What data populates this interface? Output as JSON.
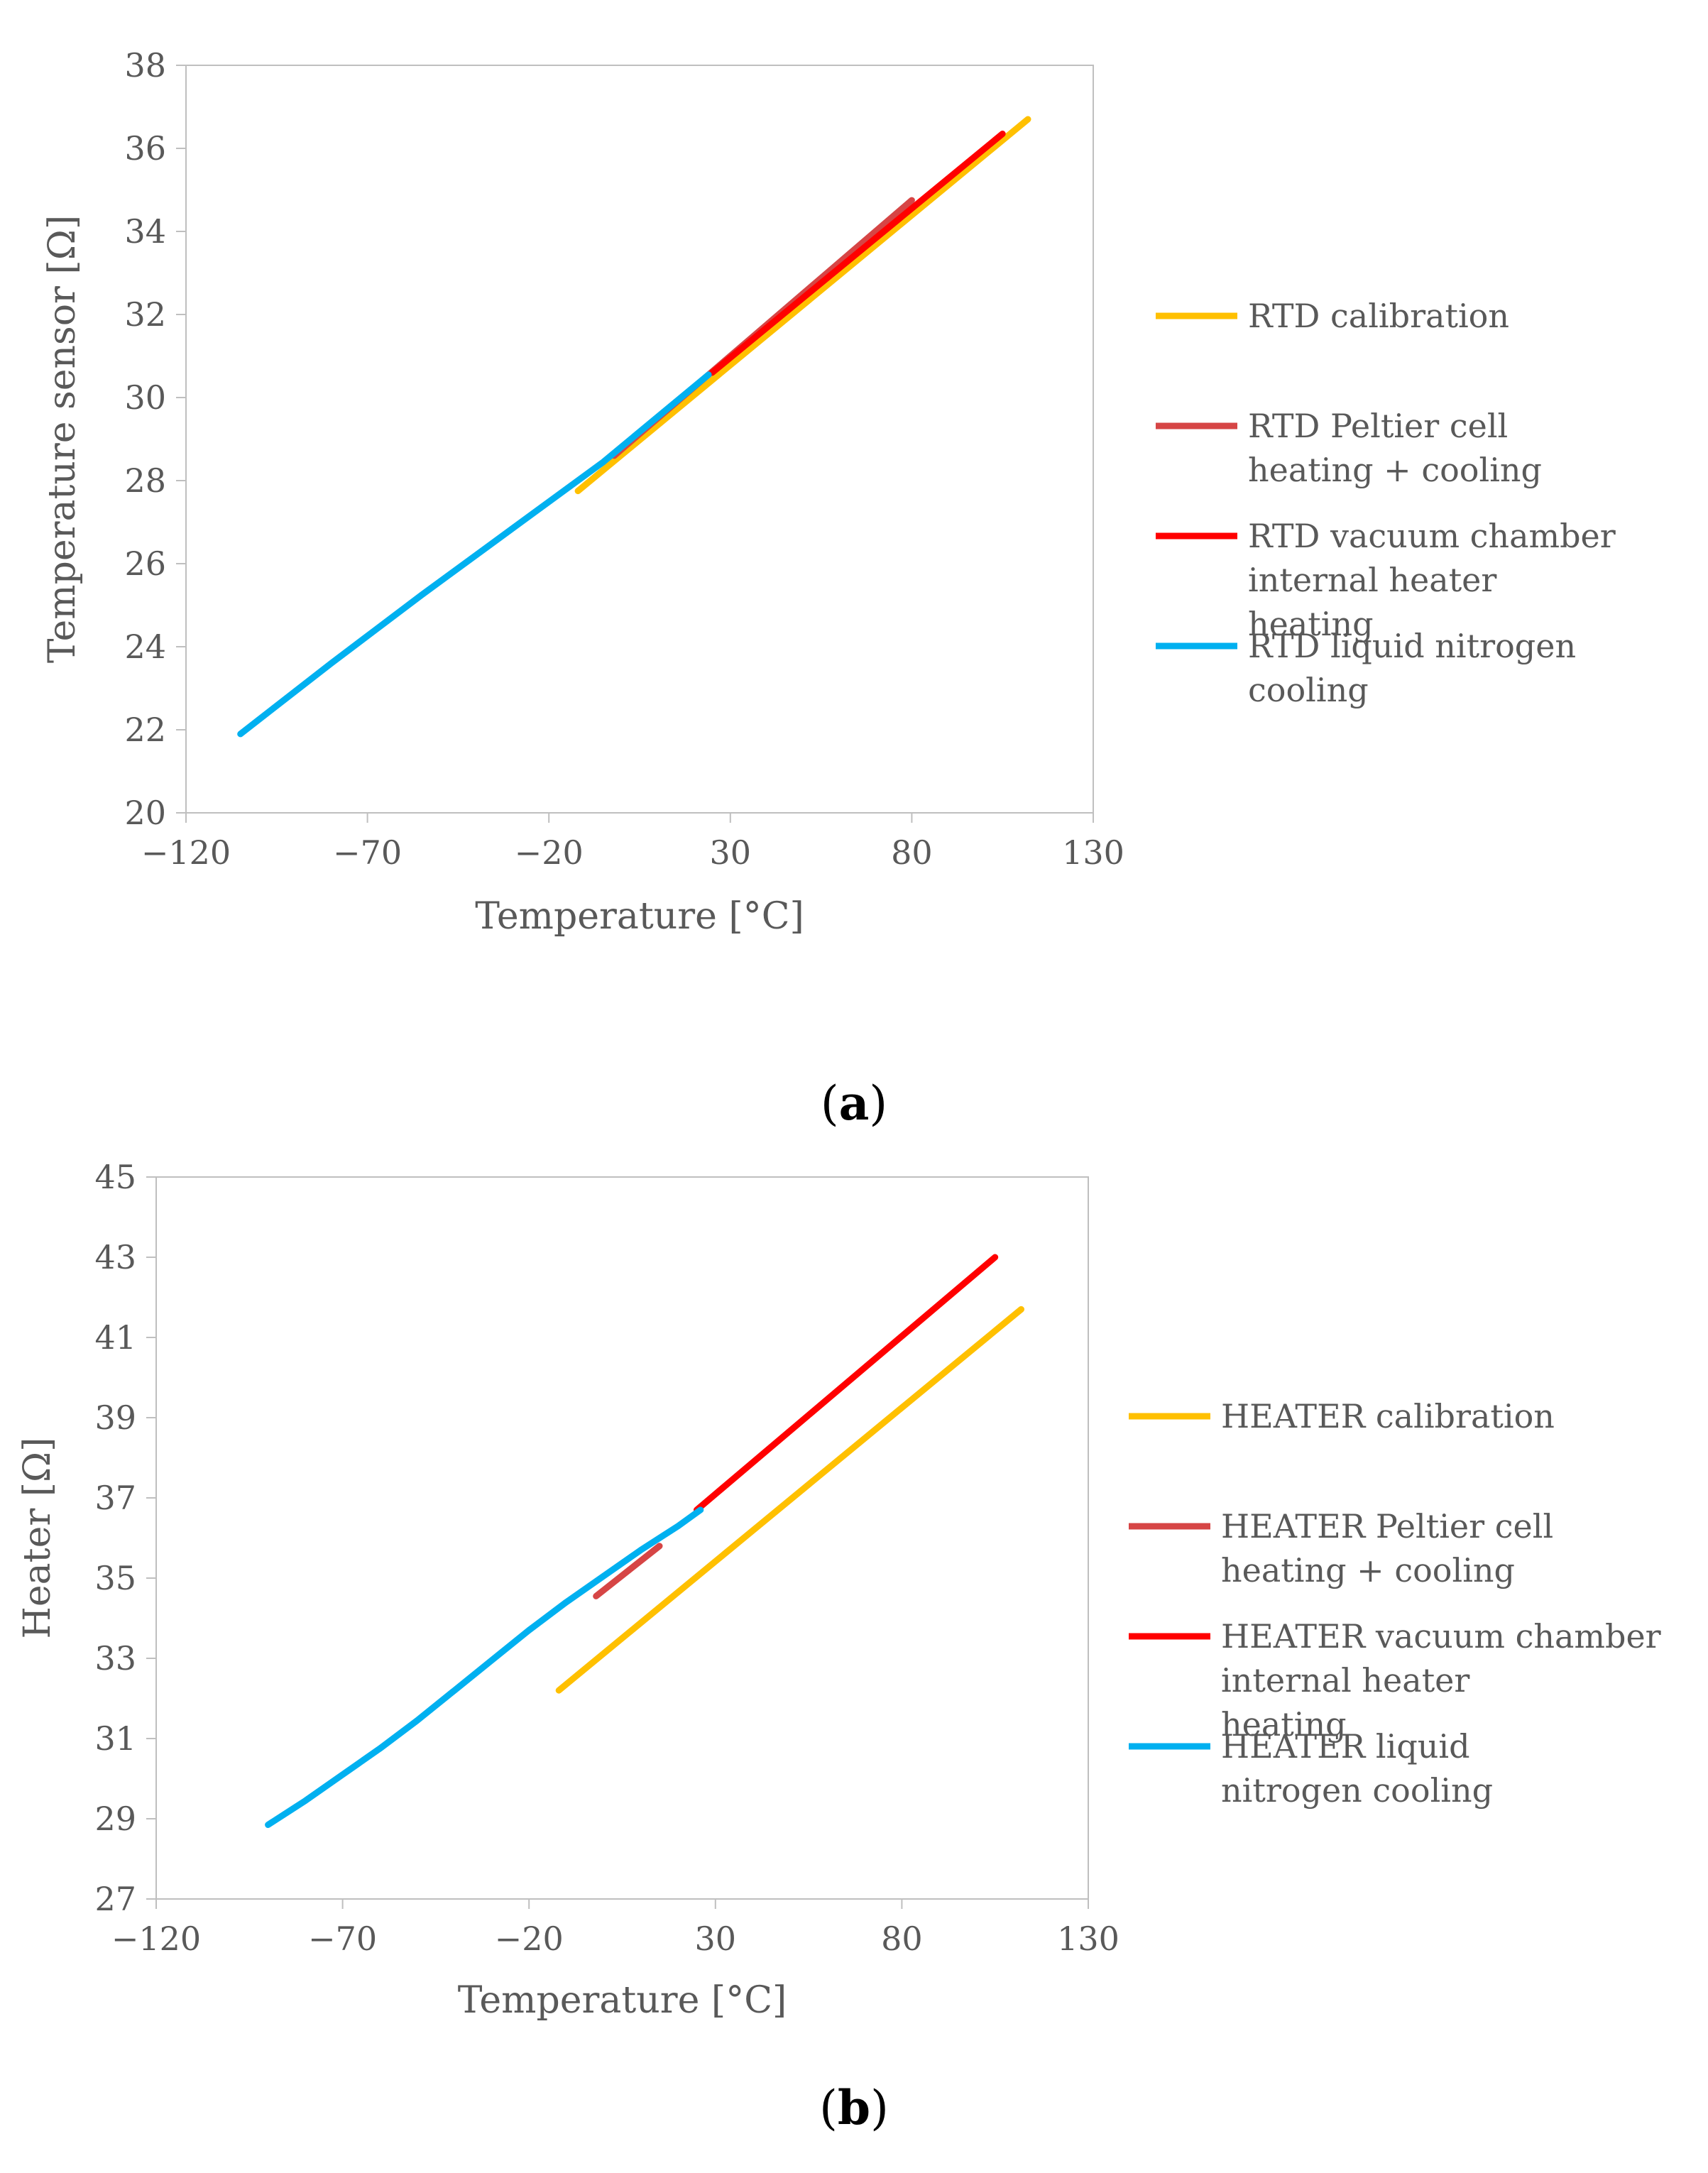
{
  "chart_data": [
    {
      "type": "line",
      "panel_label": "a",
      "xlabel": "Temperature  [°C]",
      "ylabel": "Temperature sensor  [Ω]",
      "xlim": [
        -120,
        130
      ],
      "ylim": [
        20,
        38
      ],
      "xticks": [
        "−120",
        "−70",
        "−20",
        "30",
        "80",
        "130"
      ],
      "yticks": [
        "20",
        "22",
        "24",
        "26",
        "28",
        "30",
        "32",
        "34",
        "36",
        "38"
      ],
      "xtick_values": [
        -120,
        -70,
        -20,
        30,
        80,
        130
      ],
      "ytick_values": [
        20,
        22,
        24,
        26,
        28,
        30,
        32,
        34,
        36,
        38
      ],
      "grid": false,
      "legend_position": "right",
      "series": [
        {
          "name": "RTD calibration",
          "color": "#FFC000",
          "points": [
            [
              -12,
              27.75
            ],
            [
              112,
              36.7
            ]
          ]
        },
        {
          "name": "RTD Peltier cell heating + cooling",
          "color": "#D64545",
          "points": [
            [
              -2,
              28.6
            ],
            [
              80,
              34.75
            ]
          ]
        },
        {
          "name": "RTD vacuum chamber internal heater heating",
          "color": "#FF0000",
          "points": [
            [
              25,
              30.6
            ],
            [
              105,
              36.35
            ]
          ]
        },
        {
          "name": "RTD liquid nitrogen cooling",
          "color": "#00B0F0",
          "points": [
            [
              -105,
              21.9
            ],
            [
              -80,
              23.6
            ],
            [
              -55,
              25.25
            ],
            [
              -30,
              26.85
            ],
            [
              -5,
              28.45
            ],
            [
              24,
              30.55
            ]
          ]
        }
      ]
    },
    {
      "type": "line",
      "panel_label": "b",
      "xlabel": "Temperature  [°C]",
      "ylabel": "Heater  [Ω]",
      "xlim": [
        -120,
        130
      ],
      "ylim": [
        27,
        45
      ],
      "xticks": [
        "−120",
        "−70",
        "−20",
        "30",
        "80",
        "130"
      ],
      "yticks": [
        "27",
        "29",
        "31",
        "33",
        "35",
        "37",
        "39",
        "41",
        "43",
        "45"
      ],
      "xtick_values": [
        -120,
        -70,
        -20,
        30,
        80,
        130
      ],
      "ytick_values": [
        27,
        29,
        31,
        33,
        35,
        37,
        39,
        41,
        43,
        45
      ],
      "grid": false,
      "legend_position": "right",
      "series": [
        {
          "name": "HEATER calibration",
          "color": "#FFC000",
          "points": [
            [
              -12,
              32.2
            ],
            [
              112,
              41.7
            ]
          ]
        },
        {
          "name": "HEATER Peltier cell heating + cooling",
          "color": "#D64545",
          "points": [
            [
              -2,
              34.55
            ],
            [
              15,
              35.8
            ]
          ]
        },
        {
          "name": "HEATER vacuum chamber internal heater heating",
          "color": "#FF0000",
          "points": [
            [
              25,
              36.7
            ],
            [
              105,
              43.0
            ]
          ]
        },
        {
          "name": "HEATER liquid nitrogen cooling",
          "color": "#00B0F0",
          "points": [
            [
              -90,
              28.85
            ],
            [
              -80,
              29.45
            ],
            [
              -70,
              30.1
            ],
            [
              -60,
              30.75
            ],
            [
              -50,
              31.45
            ],
            [
              -40,
              32.2
            ],
            [
              -30,
              32.95
            ],
            [
              -20,
              33.7
            ],
            [
              -10,
              34.4
            ],
            [
              0,
              35.05
            ],
            [
              10,
              35.7
            ],
            [
              20,
              36.3
            ],
            [
              26,
              36.7
            ]
          ]
        }
      ]
    }
  ]
}
